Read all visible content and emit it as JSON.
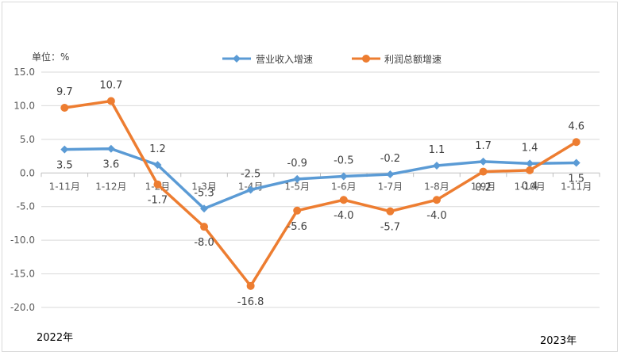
{
  "unit_label": "单位：%",
  "year_left": "2022年",
  "year_right": "2023年",
  "colors": {
    "revenue": "#5b9bd5",
    "profit": "#ed7d31",
    "grid": "#d9d9d9",
    "axis": "#bfbfbf"
  },
  "chart_data": {
    "type": "line",
    "categories": [
      "1-11月",
      "1-12月",
      "1-2月",
      "1-3月",
      "1-4月",
      "1-5月",
      "1-6月",
      "1-7月",
      "1-8月",
      "1-9月",
      "1-10月",
      "1-11月"
    ],
    "ylim": [
      -20,
      15
    ],
    "yticks": [
      "15.0",
      "10.0",
      "5.0",
      "0.0",
      "-5.0",
      "-10.0",
      "-15.0",
      "-20.0"
    ],
    "legend_position": "top-center",
    "grid": true,
    "series": [
      {
        "name": "营业收入增速",
        "values": [
          3.5,
          3.6,
          1.2,
          -5.3,
          -2.5,
          -0.9,
          -0.5,
          -0.2,
          1.1,
          1.7,
          1.4,
          1.5
        ],
        "labels": [
          "3.5",
          "3.6",
          "1.2",
          "-5.3",
          "-2.5",
          "-0.9",
          "-0.5",
          "-0.2",
          "1.1",
          "1.7",
          "1.4",
          "1.5"
        ]
      },
      {
        "name": "利润总额增速",
        "values": [
          9.7,
          10.7,
          -1.7,
          -8.0,
          -16.8,
          -5.6,
          -4.0,
          -5.7,
          -4.0,
          0.2,
          0.4,
          4.6
        ],
        "labels": [
          "9.7",
          "10.7",
          "-1.7",
          "-8.0",
          "-16.8",
          "-5.6",
          "-4.0",
          "-5.7",
          "-4.0",
          "0.2",
          "0.4",
          "4.6"
        ]
      }
    ]
  }
}
